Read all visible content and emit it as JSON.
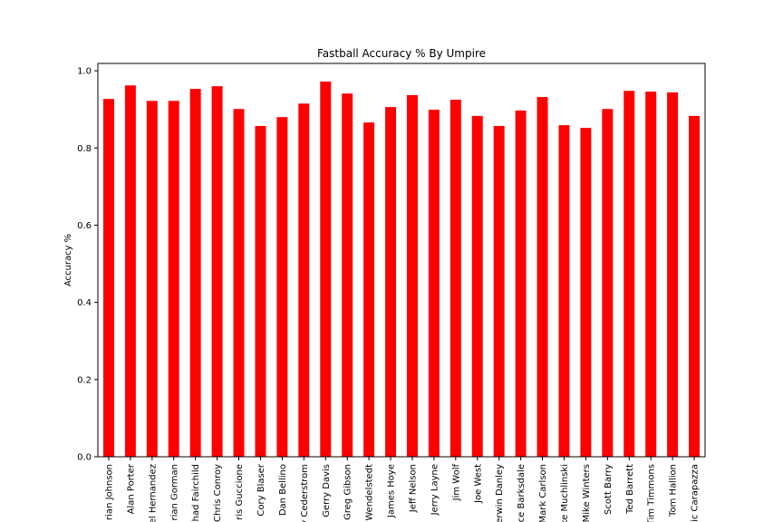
{
  "chart_data": {
    "type": "bar",
    "title": "Fastball Accuracy % By Umpire",
    "y_label": "Accuracy %",
    "categories": [
      "rian Johnson",
      "Alan Porter",
      "el Hernandez",
      "rian Gorman",
      "had Fairchild",
      "Chris Conroy",
      "ris Guccione",
      "Cory Blaser",
      "Dan Bellino",
      "y Cederstrom",
      "Gerry Davis",
      "Greg Gibson",
      "Wendelstedt",
      "James Hoye",
      "Jeff Nelson",
      "Jerry Layne",
      "Jim Wolf",
      "Joe West",
      "erwin Danley",
      "ce Barksdale",
      "Mark Carlson",
      "ke Muchlinski",
      "Mike Winters",
      "Scott Barry",
      "Ted Barrett",
      "Tim Timmons",
      "Tom Hallion",
      "ic Carapazza"
    ],
    "values": [
      0.927,
      0.962,
      0.922,
      0.922,
      0.953,
      0.96,
      0.901,
      0.857,
      0.88,
      0.915,
      0.972,
      0.941,
      0.866,
      0.906,
      0.937,
      0.899,
      0.925,
      0.883,
      0.857,
      0.897,
      0.932,
      0.859,
      0.852,
      0.901,
      0.948,
      0.946,
      0.944,
      0.883
    ],
    "color": "#ff0000",
    "ylim": [
      0,
      1.019
    ],
    "yticks": [
      {
        "value": 0,
        "label": "0.0"
      },
      0.2,
      0.4,
      0.6,
      0.8,
      {
        "value": 1,
        "label": "1.0"
      }
    ],
    "grid": false
  }
}
